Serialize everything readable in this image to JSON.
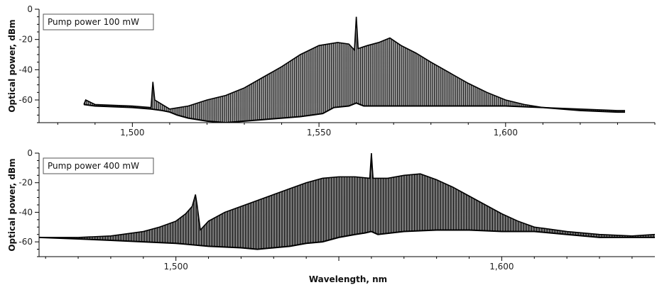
{
  "chart_data": [
    {
      "type": "line",
      "title": "",
      "legend": "Pump power 100 mW",
      "xlabel": "",
      "ylabel": "Optical power, dBm",
      "xlim": [
        1475,
        1640
      ],
      "ylim": [
        -75,
        0
      ],
      "xticks": [
        1500,
        1550,
        1600
      ],
      "xtick_labels": [
        "1,500",
        "1,550",
        "1,600"
      ],
      "yticks": [
        0,
        -20,
        -40,
        -60
      ],
      "ytick_labels": [
        "0",
        "-20",
        "-40",
        "-60"
      ],
      "series": [
        {
          "upper": [
            [
              1487,
              -63
            ],
            [
              1487.5,
              -60
            ],
            [
              1490,
              -63
            ],
            [
              1500,
              -64
            ],
            [
              1505,
              -65
            ],
            [
              1505.5,
              -48
            ],
            [
              1506,
              -60
            ],
            [
              1510,
              -66
            ],
            [
              1515,
              -64
            ],
            [
              1520,
              -60
            ],
            [
              1525,
              -57
            ],
            [
              1530,
              -52
            ],
            [
              1535,
              -45
            ],
            [
              1540,
              -38
            ],
            [
              1545,
              -30
            ],
            [
              1550,
              -24
            ],
            [
              1555,
              -22
            ],
            [
              1558,
              -23
            ],
            [
              1559.5,
              -27
            ],
            [
              1560,
              -5
            ],
            [
              1560.5,
              -26
            ],
            [
              1563,
              -24
            ],
            [
              1566,
              -22
            ],
            [
              1569,
              -19
            ],
            [
              1572,
              -24
            ],
            [
              1576,
              -29
            ],
            [
              1580,
              -35
            ],
            [
              1585,
              -42
            ],
            [
              1590,
              -49
            ],
            [
              1595,
              -55
            ],
            [
              1600,
              -60
            ],
            [
              1605,
              -63
            ],
            [
              1610,
              -65
            ],
            [
              1620,
              -66
            ],
            [
              1630,
              -67
            ],
            [
              1632,
              -67
            ]
          ],
          "lower": [
            [
              1487,
              -63
            ],
            [
              1490,
              -64
            ],
            [
              1500,
              -65
            ],
            [
              1505,
              -66
            ],
            [
              1508,
              -67
            ],
            [
              1510,
              -68
            ],
            [
              1512,
              -70
            ],
            [
              1515,
              -72
            ],
            [
              1520,
              -74
            ],
            [
              1525,
              -75
            ],
            [
              1530,
              -74
            ],
            [
              1535,
              -73
            ],
            [
              1540,
              -72
            ],
            [
              1545,
              -71
            ],
            [
              1548,
              -70
            ],
            [
              1551,
              -69
            ],
            [
              1554,
              -65
            ],
            [
              1558,
              -64
            ],
            [
              1560,
              -62
            ],
            [
              1562,
              -64
            ],
            [
              1570,
              -64
            ],
            [
              1580,
              -64
            ],
            [
              1590,
              -64
            ],
            [
              1600,
              -64
            ],
            [
              1610,
              -65
            ],
            [
              1620,
              -67
            ],
            [
              1630,
              -68
            ],
            [
              1632,
              -68
            ]
          ]
        }
      ]
    },
    {
      "type": "line",
      "title": "",
      "legend": "Pump power 400 mW",
      "xlabel": "Wavelength, nm",
      "ylabel": "Optical power, dBm",
      "xlim": [
        1458,
        1647
      ],
      "ylim": [
        -70,
        0
      ],
      "xticks": [
        1500,
        1600
      ],
      "xtick_labels": [
        "1,500",
        "1,600"
      ],
      "yticks": [
        0,
        -20,
        -40,
        -60
      ],
      "ytick_labels": [
        "0",
        "-20",
        "-40",
        "-60"
      ],
      "series": [
        {
          "upper": [
            [
              1458,
              -57
            ],
            [
              1470,
              -57
            ],
            [
              1480,
              -56
            ],
            [
              1490,
              -53
            ],
            [
              1495,
              -50
            ],
            [
              1500,
              -46
            ],
            [
              1503,
              -41
            ],
            [
              1505,
              -36
            ],
            [
              1506,
              -28
            ],
            [
              1506.5,
              -35
            ],
            [
              1507.5,
              -52
            ],
            [
              1510,
              -46
            ],
            [
              1515,
              -40
            ],
            [
              1520,
              -36
            ],
            [
              1525,
              -32
            ],
            [
              1530,
              -28
            ],
            [
              1535,
              -24
            ],
            [
              1540,
              -20
            ],
            [
              1545,
              -17
            ],
            [
              1550,
              -16
            ],
            [
              1555,
              -16
            ],
            [
              1559.5,
              -17
            ],
            [
              1560,
              0
            ],
            [
              1560.5,
              -17
            ],
            [
              1565,
              -17
            ],
            [
              1570,
              -15
            ],
            [
              1575,
              -14
            ],
            [
              1580,
              -18
            ],
            [
              1585,
              -23
            ],
            [
              1590,
              -29
            ],
            [
              1595,
              -35
            ],
            [
              1600,
              -41
            ],
            [
              1605,
              -46
            ],
            [
              1610,
              -50
            ],
            [
              1620,
              -53
            ],
            [
              1630,
              -55
            ],
            [
              1640,
              -56
            ],
            [
              1647,
              -55
            ]
          ],
          "lower": [
            [
              1458,
              -57
            ],
            [
              1470,
              -58
            ],
            [
              1480,
              -59
            ],
            [
              1490,
              -60
            ],
            [
              1500,
              -61
            ],
            [
              1505,
              -62
            ],
            [
              1510,
              -63
            ],
            [
              1520,
              -64
            ],
            [
              1525,
              -65
            ],
            [
              1530,
              -64
            ],
            [
              1535,
              -63
            ],
            [
              1540,
              -61
            ],
            [
              1545,
              -60
            ],
            [
              1550,
              -57
            ],
            [
              1555,
              -55
            ],
            [
              1558,
              -54
            ],
            [
              1560,
              -53
            ],
            [
              1562,
              -55
            ],
            [
              1570,
              -53
            ],
            [
              1580,
              -52
            ],
            [
              1590,
              -52
            ],
            [
              1600,
              -53
            ],
            [
              1610,
              -53
            ],
            [
              1620,
              -55
            ],
            [
              1630,
              -57
            ],
            [
              1640,
              -57
            ],
            [
              1647,
              -57
            ]
          ]
        }
      ]
    }
  ]
}
